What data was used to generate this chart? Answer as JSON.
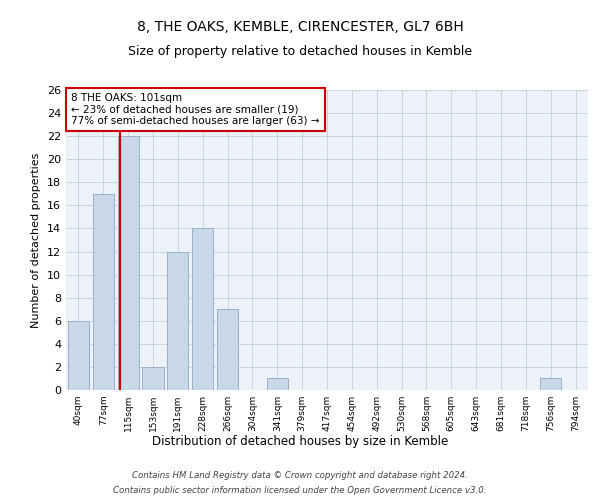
{
  "title1": "8, THE OAKS, KEMBLE, CIRENCESTER, GL7 6BH",
  "title2": "Size of property relative to detached houses in Kemble",
  "xlabel": "Distribution of detached houses by size in Kemble",
  "ylabel": "Number of detached properties",
  "bin_labels": [
    "40sqm",
    "77sqm",
    "115sqm",
    "153sqm",
    "191sqm",
    "228sqm",
    "266sqm",
    "304sqm",
    "341sqm",
    "379sqm",
    "417sqm",
    "454sqm",
    "492sqm",
    "530sqm",
    "568sqm",
    "605sqm",
    "643sqm",
    "681sqm",
    "718sqm",
    "756sqm",
    "794sqm"
  ],
  "bar_values": [
    6,
    17,
    22,
    2,
    12,
    14,
    7,
    0,
    1,
    0,
    0,
    0,
    0,
    0,
    0,
    0,
    0,
    0,
    0,
    1,
    0
  ],
  "property_line_x": 1.67,
  "annotation_text": "8 THE OAKS: 101sqm\n← 23% of detached houses are smaller (19)\n77% of semi-detached houses are larger (63) →",
  "bar_color": "#c8d8e8",
  "bar_edge_color": "#9ab0c8",
  "line_color": "#cc0000",
  "annotation_box_color": "#ffffff",
  "annotation_box_edge": "#cc0000",
  "background_color": "#edf1f8",
  "ylim": [
    0,
    26
  ],
  "yticks": [
    0,
    2,
    4,
    6,
    8,
    10,
    12,
    14,
    16,
    18,
    20,
    22,
    24,
    26
  ],
  "footer1": "Contains HM Land Registry data © Crown copyright and database right 2024.",
  "footer2": "Contains public sector information licensed under the Open Government Licence v3.0."
}
